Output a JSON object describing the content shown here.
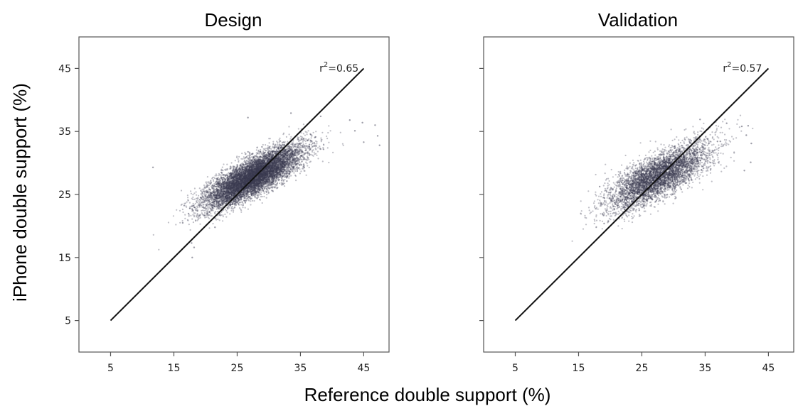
{
  "figure": {
    "ylabel": "iPhone double support (%)",
    "xlabel": "Reference double support (%)"
  },
  "chart_data": [
    {
      "type": "scatter",
      "title": "Design",
      "xlabel": "Reference double support (%)",
      "ylabel": "iPhone double support (%)",
      "xlim": [
        0,
        49
      ],
      "ylim": [
        0,
        50
      ],
      "xticks": [
        5,
        15,
        25,
        35,
        45
      ],
      "yticks": [
        5,
        15,
        25,
        35,
        45
      ],
      "xtick_labels": [
        "5",
        "15",
        "25",
        "35",
        "45"
      ],
      "ytick_labels": [
        "5",
        "15",
        "25",
        "35",
        "45"
      ],
      "identity_line": {
        "x": [
          5,
          45
        ],
        "y": [
          5,
          45
        ]
      },
      "annotation": {
        "base": "r",
        "sup": "2",
        "text": "=0.65",
        "x": 38,
        "y": 44.5
      },
      "point_color": "#3b3b52",
      "cloud": {
        "center_x": 27.5,
        "center_y": 27.8,
        "sd_x": 3.8,
        "sd_y": 2.4,
        "correlation": 0.8,
        "approx_n": 9000
      },
      "outliers": [
        {
          "x": 11.7,
          "y": 29.3
        },
        {
          "x": 17.8,
          "y": 17.3
        },
        {
          "x": 18.2,
          "y": 16.6
        },
        {
          "x": 17.9,
          "y": 15.0
        },
        {
          "x": 16.4,
          "y": 20.5
        },
        {
          "x": 18.5,
          "y": 22.5
        },
        {
          "x": 21.5,
          "y": 19.8
        },
        {
          "x": 26.7,
          "y": 37.2
        },
        {
          "x": 33.5,
          "y": 37.9
        },
        {
          "x": 38.2,
          "y": 37.4
        },
        {
          "x": 42.8,
          "y": 36.8
        },
        {
          "x": 44.8,
          "y": 36.4
        },
        {
          "x": 46.8,
          "y": 36.0
        },
        {
          "x": 47.2,
          "y": 34.3
        },
        {
          "x": 47.5,
          "y": 32.8
        },
        {
          "x": 45.0,
          "y": 33.3
        },
        {
          "x": 43.6,
          "y": 35.1
        }
      ],
      "grid": false
    },
    {
      "type": "scatter",
      "title": "Validation",
      "xlabel": "Reference double support (%)",
      "ylabel": "iPhone double support (%)",
      "xlim": [
        0,
        49
      ],
      "ylim": [
        0,
        50
      ],
      "xticks": [
        5,
        15,
        25,
        35,
        45
      ],
      "yticks": [
        5,
        15,
        25,
        35,
        45
      ],
      "xtick_labels": [
        "5",
        "15",
        "25",
        "35",
        "45"
      ],
      "ytick_labels": [
        "5",
        "15",
        "25",
        "35",
        "45"
      ],
      "identity_line": {
        "x": [
          5,
          45
        ],
        "y": [
          5,
          45
        ]
      },
      "annotation": {
        "base": "r",
        "sup": "2",
        "text": "=0.57",
        "x": 37.8,
        "y": 44.5
      },
      "point_color": "#3b3b52",
      "cloud": {
        "center_x": 27.5,
        "center_y": 27.8,
        "sd_x": 4.0,
        "sd_y": 2.6,
        "correlation": 0.75,
        "approx_n": 5000
      },
      "outliers": [
        {
          "x": 19.7,
          "y": 20.7
        },
        {
          "x": 35.5,
          "y": 35.4
        },
        {
          "x": 40.8,
          "y": 35.8
        },
        {
          "x": 41.8,
          "y": 35.9
        },
        {
          "x": 41.5,
          "y": 34.4
        },
        {
          "x": 42.3,
          "y": 33.1
        },
        {
          "x": 42.2,
          "y": 30.1
        },
        {
          "x": 41.2,
          "y": 28.8
        },
        {
          "x": 38.4,
          "y": 36.3
        },
        {
          "x": 34.2,
          "y": 36.9
        }
      ],
      "grid": false
    }
  ]
}
